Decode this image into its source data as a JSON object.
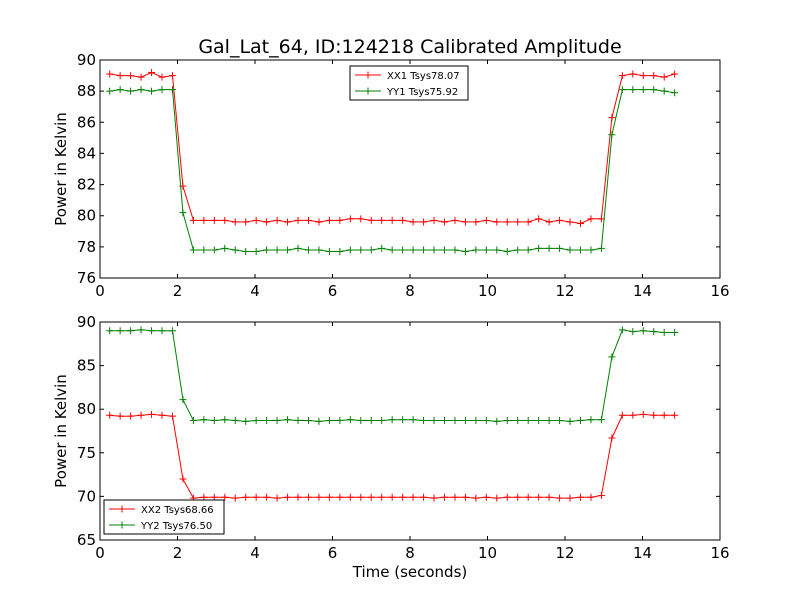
{
  "figure_title": "Gal_Lat_64, ID:124218 Calibrated Amplitude",
  "chart_data": [
    {
      "type": "line",
      "title": "Gal_Lat_64, ID:124218 Calibrated Amplitude",
      "xlabel": "",
      "ylabel": "Power in Kelvin",
      "xlim": [
        0,
        16
      ],
      "ylim": [
        76,
        90
      ],
      "xticks": [
        0,
        2,
        4,
        6,
        8,
        10,
        12,
        14,
        16
      ],
      "yticks": [
        76,
        78,
        80,
        82,
        84,
        86,
        88,
        90
      ],
      "grid": false,
      "legend_position": "upper-center",
      "x": [
        0.25,
        0.52,
        0.79,
        1.06,
        1.33,
        1.6,
        1.87,
        2.14,
        2.41,
        2.68,
        2.95,
        3.22,
        3.49,
        3.76,
        4.03,
        4.3,
        4.57,
        4.84,
        5.11,
        5.38,
        5.65,
        5.92,
        6.19,
        6.46,
        6.73,
        7.0,
        7.27,
        7.54,
        7.81,
        8.08,
        8.35,
        8.62,
        8.89,
        9.16,
        9.43,
        9.7,
        9.97,
        10.24,
        10.51,
        10.78,
        11.05,
        11.32,
        11.59,
        11.86,
        12.13,
        12.4,
        12.67,
        12.94,
        13.21,
        13.48,
        13.75,
        14.02,
        14.29,
        14.56,
        14.83
      ],
      "series": [
        {
          "name": "XX1 Tsys78.07",
          "color": "#ff0000",
          "values": [
            89.1,
            89.0,
            89.0,
            88.9,
            89.2,
            88.9,
            89.0,
            81.9,
            79.7,
            79.7,
            79.7,
            79.7,
            79.6,
            79.6,
            79.7,
            79.6,
            79.7,
            79.6,
            79.7,
            79.7,
            79.6,
            79.7,
            79.7,
            79.8,
            79.8,
            79.7,
            79.7,
            79.7,
            79.7,
            79.6,
            79.6,
            79.7,
            79.6,
            79.7,
            79.6,
            79.6,
            79.7,
            79.6,
            79.6,
            79.6,
            79.6,
            79.8,
            79.6,
            79.7,
            79.6,
            79.5,
            79.8,
            79.8,
            86.3,
            89.0,
            89.1,
            89.0,
            89.0,
            88.9,
            89.1
          ]
        },
        {
          "name": "YY1 Tsys75.92",
          "color": "#008000",
          "values": [
            88.0,
            88.1,
            88.0,
            88.1,
            88.0,
            88.1,
            88.1,
            80.2,
            77.8,
            77.8,
            77.8,
            77.9,
            77.8,
            77.7,
            77.7,
            77.8,
            77.8,
            77.8,
            77.9,
            77.8,
            77.8,
            77.7,
            77.7,
            77.8,
            77.8,
            77.8,
            77.9,
            77.8,
            77.8,
            77.8,
            77.8,
            77.8,
            77.8,
            77.8,
            77.7,
            77.8,
            77.8,
            77.8,
            77.7,
            77.8,
            77.8,
            77.9,
            77.9,
            77.9,
            77.8,
            77.8,
            77.8,
            77.9,
            85.2,
            88.1,
            88.1,
            88.1,
            88.1,
            88.0,
            87.9
          ]
        }
      ]
    },
    {
      "type": "line",
      "title": "",
      "xlabel": "Time (seconds)",
      "ylabel": "Power in Kelvin",
      "xlim": [
        0,
        16
      ],
      "ylim": [
        65,
        90
      ],
      "xticks": [
        0,
        2,
        4,
        6,
        8,
        10,
        12,
        14,
        16
      ],
      "yticks": [
        65,
        70,
        75,
        80,
        85,
        90
      ],
      "grid": false,
      "legend_position": "lower-left",
      "x": [
        0.25,
        0.52,
        0.79,
        1.06,
        1.33,
        1.6,
        1.87,
        2.14,
        2.41,
        2.68,
        2.95,
        3.22,
        3.49,
        3.76,
        4.03,
        4.3,
        4.57,
        4.84,
        5.11,
        5.38,
        5.65,
        5.92,
        6.19,
        6.46,
        6.73,
        7.0,
        7.27,
        7.54,
        7.81,
        8.08,
        8.35,
        8.62,
        8.89,
        9.16,
        9.43,
        9.7,
        9.97,
        10.24,
        10.51,
        10.78,
        11.05,
        11.32,
        11.59,
        11.86,
        12.13,
        12.4,
        12.67,
        12.94,
        13.21,
        13.48,
        13.75,
        14.02,
        14.29,
        14.56,
        14.83
      ],
      "series": [
        {
          "name": "XX2 Tsys68.66",
          "color": "#ff0000",
          "values": [
            79.3,
            79.2,
            79.2,
            79.3,
            79.4,
            79.3,
            79.2,
            72.0,
            69.8,
            69.9,
            69.9,
            69.9,
            69.8,
            69.9,
            69.9,
            69.9,
            69.8,
            69.9,
            69.9,
            69.9,
            69.9,
            69.9,
            69.9,
            69.9,
            69.9,
            69.9,
            69.9,
            69.9,
            69.9,
            69.9,
            69.9,
            69.8,
            69.9,
            69.9,
            69.9,
            69.8,
            69.9,
            69.8,
            69.9,
            69.9,
            69.9,
            69.9,
            69.9,
            69.8,
            69.8,
            69.9,
            69.9,
            70.1,
            76.7,
            79.3,
            79.3,
            79.4,
            79.3,
            79.3,
            79.3
          ]
        },
        {
          "name": "YY2 Tsys76.50",
          "color": "#008000",
          "values": [
            89.0,
            89.0,
            89.0,
            89.1,
            89.0,
            89.0,
            89.0,
            81.1,
            78.7,
            78.8,
            78.7,
            78.8,
            78.7,
            78.6,
            78.7,
            78.7,
            78.7,
            78.8,
            78.7,
            78.7,
            78.6,
            78.7,
            78.7,
            78.8,
            78.7,
            78.7,
            78.7,
            78.8,
            78.8,
            78.8,
            78.7,
            78.7,
            78.7,
            78.7,
            78.7,
            78.7,
            78.7,
            78.6,
            78.7,
            78.7,
            78.7,
            78.7,
            78.7,
            78.7,
            78.6,
            78.7,
            78.8,
            78.8,
            86.0,
            89.1,
            88.9,
            89.0,
            88.9,
            88.8,
            88.8
          ]
        }
      ]
    }
  ]
}
